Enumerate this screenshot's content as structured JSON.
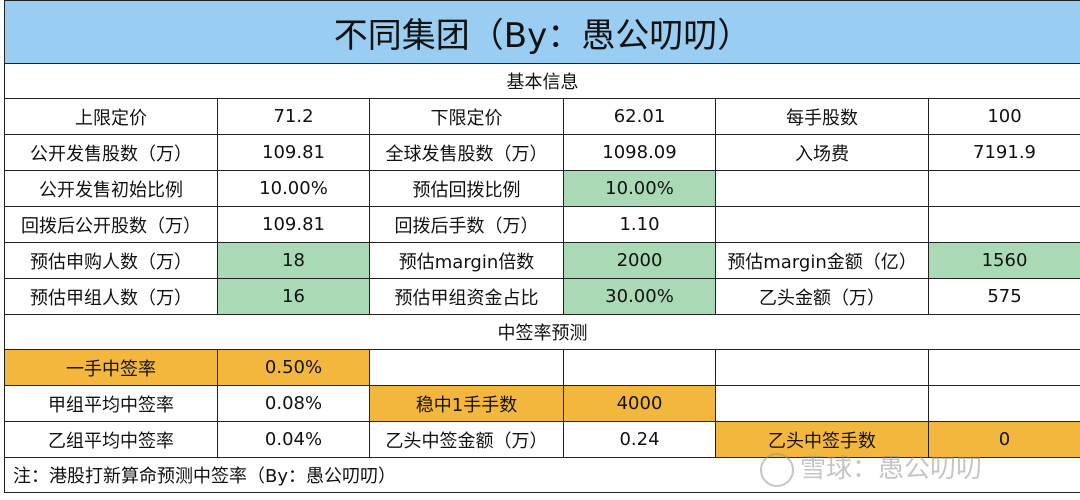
{
  "title": "不同集团（By：愚公叨叨）",
  "section_basic": "基本信息",
  "section_predict": "中签率预测",
  "rows": [
    [
      "上限定价",
      "71.2",
      "下限定价",
      "62.01",
      "每手股数",
      "100"
    ],
    [
      "公开发售股数（万）",
      "109.81",
      "全球发售股数（万）",
      "1098.09",
      "入场费",
      "7191.9"
    ],
    [
      "公开发售初始比例",
      "10.00%",
      "预估回拨比例",
      "10.00%",
      "",
      ""
    ],
    [
      "回拨后公开股数（万）",
      "109.81",
      "回拨后手数（万）",
      "1.10",
      "",
      ""
    ],
    [
      "预估申购人数（万）",
      "18",
      "预估margin倍数",
      "2000",
      "预估margin金额（亿）",
      "1560"
    ],
    [
      "预估甲组人数（万）",
      "16",
      "预估甲组资金占比",
      "30.00%",
      "乙头金额（万）",
      "575"
    ]
  ],
  "predict_rows": [
    [
      "一手中签率",
      "0.50%",
      "",
      "",
      "",
      ""
    ],
    [
      "甲组平均中签率",
      "0.08%",
      "稳中1手手数",
      "4000",
      "",
      ""
    ],
    [
      "乙组平均中签率",
      "0.04%",
      "乙头中签金额（万）",
      "0.24",
      "乙头中签手数",
      "0"
    ]
  ],
  "note": "注：港股打新算命预测中签率（By：愚公叨叨）",
  "watermark": "雪球：愚公叨叨",
  "colors": {
    "title_bg": "#99cdf2",
    "green": "#a9d9b5",
    "orange": "#f4b73d"
  }
}
